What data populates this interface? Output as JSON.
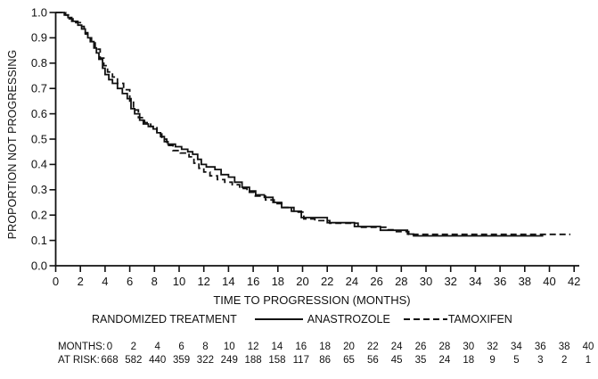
{
  "colors": {
    "line": "#111111",
    "text": "#111111",
    "background": "#ffffff"
  },
  "chart_data": {
    "type": "line",
    "variant": "kaplan_meier_step",
    "title": "",
    "xlabel": "TIME TO PROGRESSION (MONTHS)",
    "ylabel": "PROPORTION NOT PROGRESSING",
    "xlim": [
      0,
      42
    ],
    "ylim": [
      0.0,
      1.0
    ],
    "xticks": [
      0,
      2,
      4,
      6,
      8,
      10,
      12,
      14,
      16,
      18,
      20,
      22,
      24,
      26,
      28,
      30,
      32,
      34,
      36,
      38,
      40,
      42
    ],
    "yticks": [
      1.0,
      0.9,
      0.8,
      0.7,
      0.6,
      0.5,
      0.4,
      0.3,
      0.2,
      0.1,
      0.0
    ],
    "grid": false,
    "legend": {
      "label": "RANDOMIZED TREATMENT",
      "position": "below",
      "entries": [
        {
          "name": "ANASTROZOLE",
          "line_style": "solid"
        },
        {
          "name": "TAMOXIFEN",
          "line_style": "dashed"
        }
      ]
    },
    "series": [
      {
        "name": "ANASTROZOLE",
        "line_style": "solid",
        "points": [
          [
            0,
            1.0
          ],
          [
            0.7,
            0.99
          ],
          [
            1.0,
            0.98
          ],
          [
            1.3,
            0.965
          ],
          [
            1.8,
            0.95
          ],
          [
            2.1,
            0.935
          ],
          [
            2.4,
            0.915
          ],
          [
            2.6,
            0.9
          ],
          [
            2.8,
            0.885
          ],
          [
            3.1,
            0.86
          ],
          [
            3.3,
            0.84
          ],
          [
            3.5,
            0.815
          ],
          [
            3.8,
            0.78
          ],
          [
            4.0,
            0.755
          ],
          [
            4.3,
            0.735
          ],
          [
            4.6,
            0.72
          ],
          [
            5.0,
            0.7
          ],
          [
            5.4,
            0.68
          ],
          [
            5.8,
            0.66
          ],
          [
            6.1,
            0.62
          ],
          [
            6.4,
            0.6
          ],
          [
            6.8,
            0.575
          ],
          [
            7.1,
            0.56
          ],
          [
            7.5,
            0.55
          ],
          [
            7.9,
            0.54
          ],
          [
            8.2,
            0.525
          ],
          [
            8.5,
            0.51
          ],
          [
            8.8,
            0.49
          ],
          [
            9.1,
            0.48
          ],
          [
            9.7,
            0.47
          ],
          [
            10.2,
            0.46
          ],
          [
            10.7,
            0.45
          ],
          [
            11.1,
            0.44
          ],
          [
            11.5,
            0.42
          ],
          [
            11.8,
            0.4
          ],
          [
            12.2,
            0.39
          ],
          [
            12.9,
            0.38
          ],
          [
            13.4,
            0.36
          ],
          [
            14.0,
            0.35
          ],
          [
            14.5,
            0.33
          ],
          [
            15.1,
            0.31
          ],
          [
            15.7,
            0.295
          ],
          [
            16.2,
            0.28
          ],
          [
            16.9,
            0.27
          ],
          [
            17.6,
            0.25
          ],
          [
            18.3,
            0.23
          ],
          [
            19.1,
            0.215
          ],
          [
            19.9,
            0.19
          ],
          [
            22.0,
            0.17
          ],
          [
            24.2,
            0.155
          ],
          [
            26.3,
            0.14
          ],
          [
            28.5,
            0.125
          ],
          [
            29.0,
            0.118
          ],
          [
            39.5,
            0.118
          ]
        ]
      },
      {
        "name": "TAMOXIFEN",
        "line_style": "dashed",
        "points": [
          [
            0,
            1.0
          ],
          [
            0.8,
            0.99
          ],
          [
            1.1,
            0.975
          ],
          [
            1.4,
            0.96
          ],
          [
            2.0,
            0.945
          ],
          [
            2.3,
            0.92
          ],
          [
            2.6,
            0.9
          ],
          [
            2.9,
            0.88
          ],
          [
            3.2,
            0.855
          ],
          [
            3.6,
            0.82
          ],
          [
            3.9,
            0.79
          ],
          [
            4.2,
            0.765
          ],
          [
            4.6,
            0.745
          ],
          [
            5.0,
            0.72
          ],
          [
            5.5,
            0.695
          ],
          [
            6.0,
            0.65
          ],
          [
            6.3,
            0.615
          ],
          [
            6.7,
            0.585
          ],
          [
            7.2,
            0.565
          ],
          [
            7.7,
            0.55
          ],
          [
            8.2,
            0.52
          ],
          [
            8.6,
            0.5
          ],
          [
            9.0,
            0.475
          ],
          [
            9.5,
            0.455
          ],
          [
            10.1,
            0.445
          ],
          [
            10.8,
            0.43
          ],
          [
            11.2,
            0.405
          ],
          [
            11.6,
            0.385
          ],
          [
            12.0,
            0.37
          ],
          [
            12.5,
            0.355
          ],
          [
            13.1,
            0.34
          ],
          [
            13.7,
            0.33
          ],
          [
            14.3,
            0.32
          ],
          [
            14.9,
            0.305
          ],
          [
            15.5,
            0.29
          ],
          [
            16.1,
            0.275
          ],
          [
            17.0,
            0.26
          ],
          [
            17.7,
            0.245
          ],
          [
            18.4,
            0.23
          ],
          [
            19.3,
            0.212
          ],
          [
            20.1,
            0.185
          ],
          [
            21.0,
            0.178
          ],
          [
            22.2,
            0.168
          ],
          [
            24.5,
            0.152
          ],
          [
            26.8,
            0.142
          ],
          [
            27.6,
            0.135
          ],
          [
            28.6,
            0.124
          ],
          [
            41.7,
            0.124
          ]
        ]
      }
    ],
    "at_risk_table": {
      "months_label": "MONTHS:",
      "at_risk_label": "AT RISK:",
      "months": [
        0,
        2,
        4,
        6,
        8,
        10,
        12,
        14,
        16,
        18,
        20,
        22,
        24,
        26,
        28,
        30,
        32,
        34,
        36,
        38,
        40
      ],
      "at_risk": [
        668,
        582,
        440,
        359,
        322,
        249,
        188,
        158,
        117,
        86,
        65,
        56,
        45,
        35,
        24,
        18,
        9,
        5,
        3,
        2,
        1
      ]
    }
  }
}
